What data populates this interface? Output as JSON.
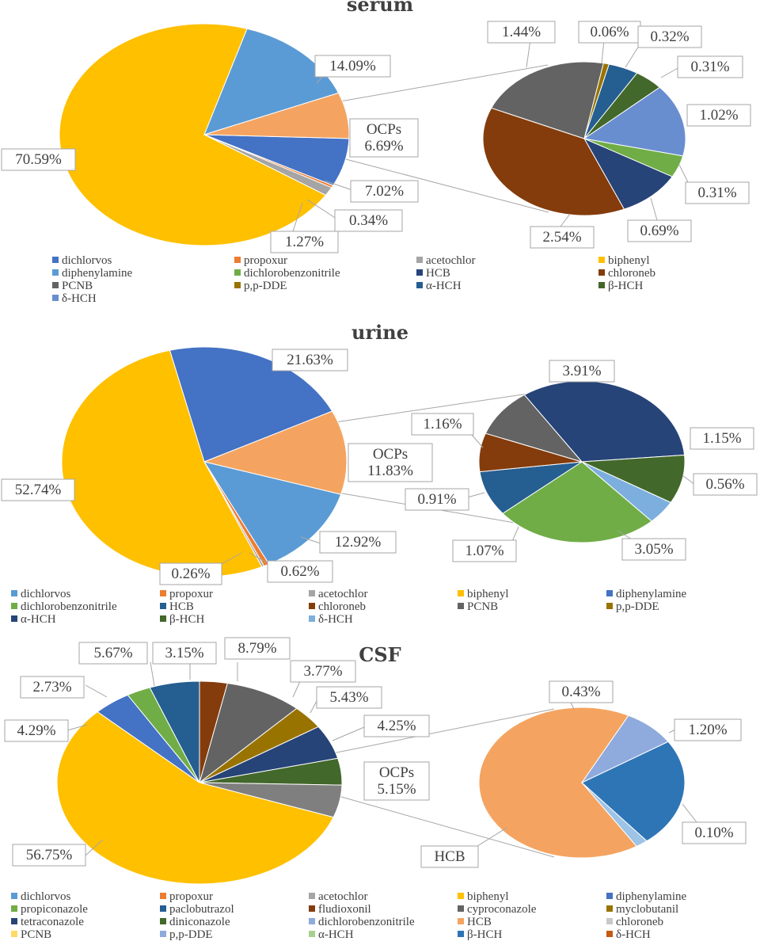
{
  "chart_data": [
    {
      "type": "pie",
      "title": "serum",
      "main": {
        "slices": [
          {
            "name": "dichlorvos",
            "value": 7.02,
            "color": "#4472C4"
          },
          {
            "name": "propoxur",
            "value": 0.34,
            "color": "#ED7D31"
          },
          {
            "name": "acetochlor",
            "value": 1.27,
            "color": "#A5A5A5"
          },
          {
            "name": "biphenyl",
            "value": 70.59,
            "color": "#FFC000"
          },
          {
            "name": "diphenylamine",
            "value": 14.09,
            "color": "#5B9BD5"
          },
          {
            "name": "OCPs",
            "value": 6.69,
            "color": "#F4A460"
          }
        ],
        "labels": [
          "7.02%",
          "0.34%",
          "1.27%",
          "70.59%",
          "14.09%",
          "OCPs",
          "6.69%"
        ]
      },
      "breakdown": {
        "slices": [
          {
            "name": "dichlorobenzonitrile",
            "value": 0.31,
            "color": "#70AD47"
          },
          {
            "name": "HCB",
            "value": 0.69,
            "color": "#264478"
          },
          {
            "name": "chloroneb",
            "value": 2.54,
            "color": "#843C0C"
          },
          {
            "name": "PCNB",
            "value": 1.44,
            "color": "#636363"
          },
          {
            "name": "p,p-DDE",
            "value": 0.06,
            "color": "#997300"
          },
          {
            "name": "α-HCH",
            "value": 0.32,
            "color": "#255E91"
          },
          {
            "name": "β-HCH",
            "value": 0.31,
            "color": "#43682B"
          },
          {
            "name": "δ-HCH",
            "value": 1.02,
            "color": "#698ED0"
          }
        ],
        "labels": [
          "0.31%",
          "0.69%",
          "2.54%",
          "1.44%",
          "0.06%",
          "0.32%",
          "0.31%",
          "1.02%"
        ]
      },
      "legend": [
        "dichlorvos",
        "propoxur",
        "acetochlor",
        "biphenyl",
        "diphenylamine",
        "dichlorobenzonitrile",
        "HCB",
        "chloroneb",
        "PCNB",
        "p,p-DDE",
        "α-HCH",
        "β-HCH",
        "δ-HCH"
      ]
    },
    {
      "type": "pie",
      "title": "urine",
      "main": {
        "slices": [
          {
            "name": "diphenylamine",
            "value": 21.63,
            "color": "#4472C4"
          },
          {
            "name": "OCPs",
            "value": 11.83,
            "color": "#F4A460"
          },
          {
            "name": "dichlorvos",
            "value": 12.92,
            "color": "#5B9BD5"
          },
          {
            "name": "propoxur",
            "value": 0.62,
            "color": "#ED7D31"
          },
          {
            "name": "acetochlor",
            "value": 0.26,
            "color": "#A5A5A5"
          },
          {
            "name": "biphenyl",
            "value": 52.74,
            "color": "#FFC000"
          }
        ],
        "labels": [
          "21.63%",
          "OCPs",
          "11.83%",
          "12.92%",
          "0.62%",
          "0.26%",
          "52.74%"
        ]
      },
      "breakdown": {
        "slices": [
          {
            "name": "α-HCH",
            "value": 3.91,
            "color": "#264478"
          },
          {
            "name": "β-HCH",
            "value": 1.15,
            "color": "#43682B"
          },
          {
            "name": "δ-HCH",
            "value": 0.56,
            "color": "#7CAFDD"
          },
          {
            "name": "dichlorobenzonitrile",
            "value": 3.05,
            "color": "#70AD47"
          },
          {
            "name": "HCB",
            "value": 1.07,
            "color": "#255E91"
          },
          {
            "name": "chloroneb",
            "value": 0.91,
            "color": "#843C0C"
          },
          {
            "name": "PCNB",
            "value": 1.16,
            "color": "#636363"
          }
        ],
        "labels": [
          "3.91%",
          "1.15%",
          "0.56%",
          "3.05%",
          "1.07%",
          "0.91%",
          "1.16%"
        ]
      },
      "legend": [
        "dichlorvos",
        "propoxur",
        "acetochlor",
        "biphenyl",
        "diphenylamine",
        "dichlorobenzonitrile",
        "HCB",
        "chloroneb",
        "PCNB",
        "p,p-DDE",
        "α-HCH",
        "β-HCH",
        "δ-HCH"
      ]
    },
    {
      "type": "pie",
      "title": "CSF",
      "main": {
        "slices": [
          {
            "name": "paclobutrazol",
            "value": 3.15,
            "color": "#843C0C"
          },
          {
            "name": "fludioxonil",
            "value": 8.79,
            "color": "#636363"
          },
          {
            "name": "cyproconazole",
            "value": 3.77,
            "color": "#997300"
          },
          {
            "name": "myclobutanil",
            "value": 5.43,
            "color": "#264478"
          },
          {
            "name": "tetraconazole",
            "value": 4.25,
            "color": "#43682B"
          },
          {
            "name": "OCPs",
            "value": 5.15,
            "color": "#7F7F7F"
          },
          {
            "name": "biphenyl",
            "value": 56.75,
            "color": "#FFC000"
          },
          {
            "name": "diphenylamine",
            "value": 4.29,
            "color": "#4472C4"
          },
          {
            "name": "dichlorvos",
            "value": 2.73,
            "color": "#70AD47"
          },
          {
            "name": "propiconazole",
            "value": 5.67,
            "color": "#255E91"
          }
        ],
        "labels": [
          "3.15%",
          "8.79%",
          "3.77%",
          "5.43%",
          "4.25%",
          "OCPs",
          "5.15%",
          "56.75%",
          "4.29%",
          "2.73%",
          "5.67%"
        ]
      },
      "breakdown": {
        "slices": [
          {
            "name": "β-HCH",
            "value": 1.2,
            "color": "#2E75B6"
          },
          {
            "name": "δ-HCH",
            "value": 0.1,
            "color": "#9DC3E6"
          },
          {
            "name": "HCB",
            "value": 3.42,
            "color": "#F4A460"
          },
          {
            "name": "p,p-DDE",
            "value": 0.43,
            "color": "#8FAADC"
          }
        ],
        "labels": [
          "1.20%",
          "0.10%",
          "HCB",
          "0.43%"
        ]
      },
      "legend": [
        "dichlorvos",
        "propoxur",
        "acetochlor",
        "biphenyl",
        "diphenylamine",
        "propiconazole",
        "paclobutrazol",
        "fludioxonil",
        "cyproconazole",
        "myclobutanil",
        "tetraconazole",
        "diniconazole",
        "dichlorobenzonitrile",
        "HCB",
        "chloroneb",
        "PCNB",
        "p,p-DDE",
        "α-HCH",
        "β-HCH",
        "δ-HCH"
      ]
    }
  ]
}
